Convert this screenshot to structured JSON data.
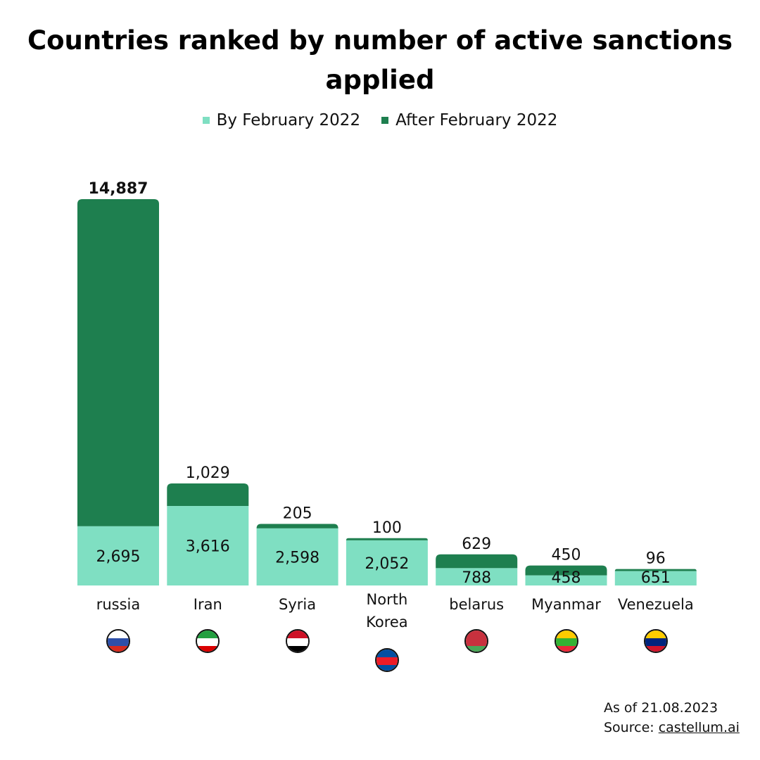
{
  "chart_data": {
    "type": "bar",
    "stacked": true,
    "title": "Countries ranked by number of active sanctions applied",
    "categories": [
      "russia",
      "Iran",
      "Syria",
      "North Korea",
      "belarus",
      "Myanmar",
      "Venezuela"
    ],
    "category_lines": [
      [
        "russia"
      ],
      [
        "Iran"
      ],
      [
        "Syria"
      ],
      [
        "North",
        "Korea"
      ],
      [
        "belarus"
      ],
      [
        "Myanmar"
      ],
      [
        "Venezuela"
      ]
    ],
    "series": [
      {
        "name": "By February 2022",
        "color": "#7fdfc2",
        "values": [
          2695,
          3616,
          2598,
          2052,
          788,
          458,
          651
        ]
      },
      {
        "name": "After February 2022",
        "color": "#1e7f4f",
        "values": [
          14887,
          1029,
          205,
          100,
          629,
          450,
          96
        ]
      }
    ],
    "value_labels": {
      "by": [
        "2,695",
        "3,616",
        "2,598",
        "2,052",
        "788",
        "458",
        "651"
      ],
      "after": [
        "14,887",
        "1,029",
        "205",
        "100",
        "629",
        "450",
        "96"
      ]
    },
    "legend": {
      "position": "top-center"
    },
    "grid": false
  },
  "flags": [
    {
      "country": "russia",
      "icon": "russia-flag-icon",
      "stripes": [
        "#ffffff",
        "#2d4fa8",
        "#d52b1e"
      ]
    },
    {
      "country": "Iran",
      "icon": "iran-flag-icon",
      "stripes": [
        "#239f40",
        "#ffffff",
        "#da0000"
      ]
    },
    {
      "country": "Syria",
      "icon": "syria-flag-icon",
      "stripes": [
        "#ce1126",
        "#ffffff",
        "#000000"
      ]
    },
    {
      "country": "North Korea",
      "icon": "north-korea-flag-icon",
      "stripes": [
        "#024fa2",
        "#ed1c27",
        "#024fa2"
      ]
    },
    {
      "country": "belarus",
      "icon": "belarus-flag-icon",
      "stripes": [
        "#c8313e",
        "#c8313e",
        "#4aa657"
      ]
    },
    {
      "country": "Myanmar",
      "icon": "myanmar-flag-icon",
      "stripes": [
        "#fecb00",
        "#34b233",
        "#ea2839"
      ]
    },
    {
      "country": "Venezuela",
      "icon": "venezuela-flag-icon",
      "stripes": [
        "#ffcc00",
        "#00247d",
        "#cf142b"
      ]
    }
  ],
  "footer": {
    "date": "As of 21.08.2023",
    "source_label": "Source: ",
    "source_link": "castellum.ai"
  }
}
